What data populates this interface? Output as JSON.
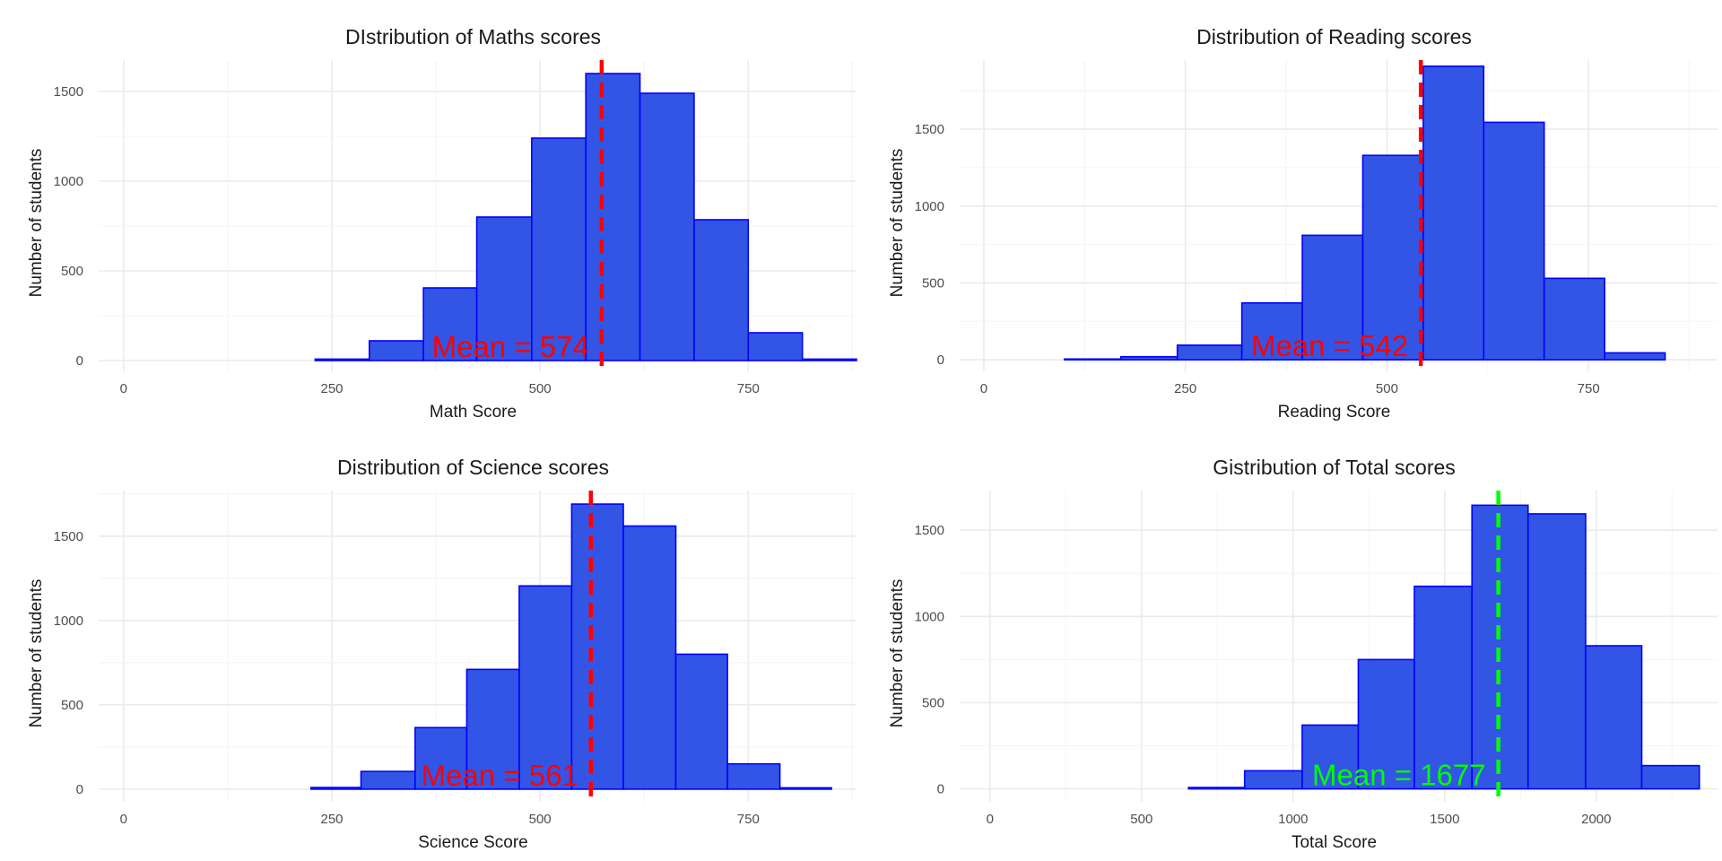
{
  "chart_data": [
    {
      "type": "bar",
      "title": "DIstribution of Maths scores",
      "xlabel": "Math Score",
      "ylabel": "Number of students",
      "xlim": [
        -30,
        880
      ],
      "ylim": [
        -60,
        1675
      ],
      "x_ticks": [
        0,
        250,
        500,
        750
      ],
      "y_ticks": [
        0,
        500,
        1000,
        1500
      ],
      "bins": [
        {
          "x0": 230,
          "x1": 295,
          "count": 8
        },
        {
          "x0": 295,
          "x1": 360,
          "count": 110
        },
        {
          "x0": 360,
          "x1": 424,
          "count": 405
        },
        {
          "x0": 424,
          "x1": 490,
          "count": 800
        },
        {
          "x0": 490,
          "x1": 555,
          "count": 1240
        },
        {
          "x0": 555,
          "x1": 620,
          "count": 1600
        },
        {
          "x0": 620,
          "x1": 685,
          "count": 1490
        },
        {
          "x0": 685,
          "x1": 750,
          "count": 785
        },
        {
          "x0": 750,
          "x1": 815,
          "count": 155
        },
        {
          "x0": 815,
          "x1": 880,
          "count": 8
        }
      ],
      "mean": 574,
      "mean_label": "Mean = 574",
      "mean_color": "#ff0000",
      "bar_fill": "#3355e6",
      "bar_stroke": "#0000ff",
      "grid": true
    },
    {
      "type": "bar",
      "title": "Distribution of Reading scores",
      "xlabel": "Reading Score",
      "ylabel": "Number of students",
      "xlim": [
        -30,
        910
      ],
      "ylim": [
        -75,
        1950
      ],
      "x_ticks": [
        0,
        250,
        500,
        750
      ],
      "y_ticks": [
        0,
        500,
        1000,
        1500
      ],
      "bins": [
        {
          "x0": 100,
          "x1": 170,
          "count": 5
        },
        {
          "x0": 170,
          "x1": 240,
          "count": 20
        },
        {
          "x0": 240,
          "x1": 320,
          "count": 95
        },
        {
          "x0": 320,
          "x1": 395,
          "count": 370
        },
        {
          "x0": 395,
          "x1": 470,
          "count": 810
        },
        {
          "x0": 470,
          "x1": 545,
          "count": 1330
        },
        {
          "x0": 545,
          "x1": 620,
          "count": 1910
        },
        {
          "x0": 620,
          "x1": 695,
          "count": 1545
        },
        {
          "x0": 695,
          "x1": 770,
          "count": 530
        },
        {
          "x0": 770,
          "x1": 845,
          "count": 45
        }
      ],
      "mean": 542,
      "mean_label": "Mean = 542",
      "mean_color": "#ff0000",
      "bar_fill": "#3355e6",
      "bar_stroke": "#0000ff",
      "grid": true
    },
    {
      "type": "bar",
      "title": "Distribution of Science scores",
      "xlabel": "Science Score",
      "ylabel": "Number of students",
      "xlim": [
        -30,
        880
      ],
      "ylim": [
        -75,
        1770
      ],
      "x_ticks": [
        0,
        250,
        500,
        750
      ],
      "y_ticks": [
        0,
        500,
        1000,
        1500
      ],
      "bins": [
        {
          "x0": 225,
          "x1": 285,
          "count": 10
        },
        {
          "x0": 285,
          "x1": 350,
          "count": 105
        },
        {
          "x0": 350,
          "x1": 412,
          "count": 365
        },
        {
          "x0": 412,
          "x1": 475,
          "count": 710
        },
        {
          "x0": 475,
          "x1": 538,
          "count": 1205
        },
        {
          "x0": 538,
          "x1": 600,
          "count": 1690
        },
        {
          "x0": 600,
          "x1": 663,
          "count": 1560
        },
        {
          "x0": 663,
          "x1": 725,
          "count": 800
        },
        {
          "x0": 725,
          "x1": 788,
          "count": 150
        },
        {
          "x0": 788,
          "x1": 850,
          "count": 8
        }
      ],
      "mean": 561,
      "mean_label": "Mean = 561",
      "mean_color": "#ff0000",
      "bar_fill": "#3355e6",
      "bar_stroke": "#0000ff",
      "grid": true
    },
    {
      "type": "bar",
      "title": "Gistribution of Total scores",
      "xlabel": "Total Score",
      "ylabel": "Number of students",
      "xlim": [
        -100,
        2400
      ],
      "ylim": [
        -75,
        1730
      ],
      "x_ticks": [
        0,
        500,
        1000,
        1500,
        2000
      ],
      "y_ticks": [
        0,
        500,
        1000,
        1500
      ],
      "bins": [
        {
          "x0": 655,
          "x1": 840,
          "count": 8
        },
        {
          "x0": 840,
          "x1": 1030,
          "count": 105
        },
        {
          "x0": 1030,
          "x1": 1215,
          "count": 370
        },
        {
          "x0": 1215,
          "x1": 1400,
          "count": 750
        },
        {
          "x0": 1400,
          "x1": 1590,
          "count": 1175
        },
        {
          "x0": 1590,
          "x1": 1775,
          "count": 1645
        },
        {
          "x0": 1775,
          "x1": 1965,
          "count": 1595
        },
        {
          "x0": 1965,
          "x1": 2150,
          "count": 830
        },
        {
          "x0": 2150,
          "x1": 2340,
          "count": 135
        }
      ],
      "mean": 1677,
      "mean_label": "Mean = 1677",
      "mean_color": "#00ff00",
      "bar_fill": "#3355e6",
      "bar_stroke": "#0000ff",
      "grid": true
    }
  ]
}
